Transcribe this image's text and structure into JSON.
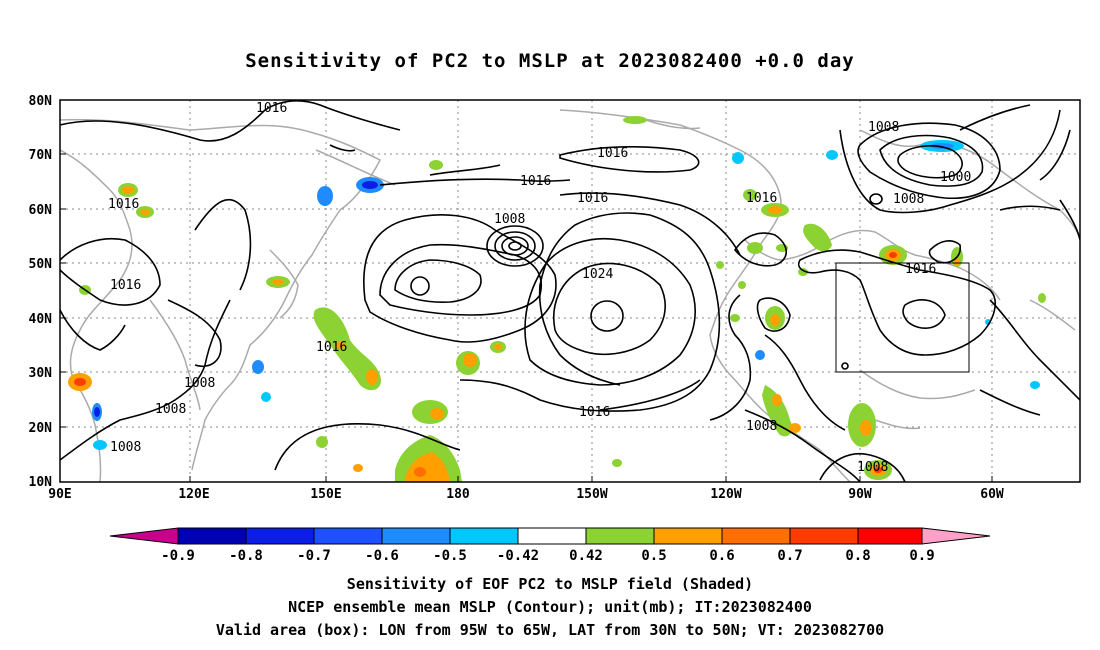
{
  "title": "Sensitivity of PC2 to MSLP at 2023082400 +0.0 day",
  "map": {
    "lat_labels": [
      "80N",
      "70N",
      "60N",
      "50N",
      "40N",
      "30N",
      "20N",
      "10N"
    ],
    "lon_labels": [
      "90E",
      "120E",
      "150E",
      "180",
      "150W",
      "120W",
      "90W",
      "60W"
    ],
    "lon_range": [
      "90E",
      "50W"
    ],
    "lat_range": [
      "10N",
      "80N"
    ],
    "contour_labels": [
      "1016",
      "1016",
      "1016",
      "1016",
      "1016",
      "1016",
      "1016",
      "1016",
      "1016",
      "1016",
      "1024",
      "1008",
      "1008",
      "1008",
      "1008",
      "1008",
      "1008",
      "1008",
      "1008",
      "1000"
    ],
    "valid_box": {
      "lon": [
        "95W",
        "65W"
      ],
      "lat": [
        "30N",
        "50N"
      ]
    }
  },
  "colorbar": {
    "tick_labels": [
      "-0.9",
      "-0.8",
      "-0.7",
      "-0.6",
      "-0.5",
      "-0.42",
      "0.42",
      "0.5",
      "0.6",
      "0.7",
      "0.8",
      "0.9"
    ],
    "colors": {
      "low_end": "#c8008c",
      "c1": "#0000b4",
      "c2": "#0a1ee6",
      "c3": "#1e50ff",
      "c4": "#1e8cff",
      "c5": "#00c8ff",
      "c6": "#ffffff",
      "c7": "#8cd232",
      "c8": "#ffa000",
      "c9": "#ff6e00",
      "c10": "#ff3c00",
      "c11": "#ff0000",
      "high_end": "#ffa0c8"
    }
  },
  "footer": {
    "line1": "Sensitivity of EOF PC2 to MSLP field (Shaded)",
    "line2": "NCEP ensemble mean MSLP (Contour); unit(mb); IT:2023082400",
    "line3": "Valid area (box): LON from 95W to 65W, LAT from 30N to 50N; VT: 2023082700"
  }
}
